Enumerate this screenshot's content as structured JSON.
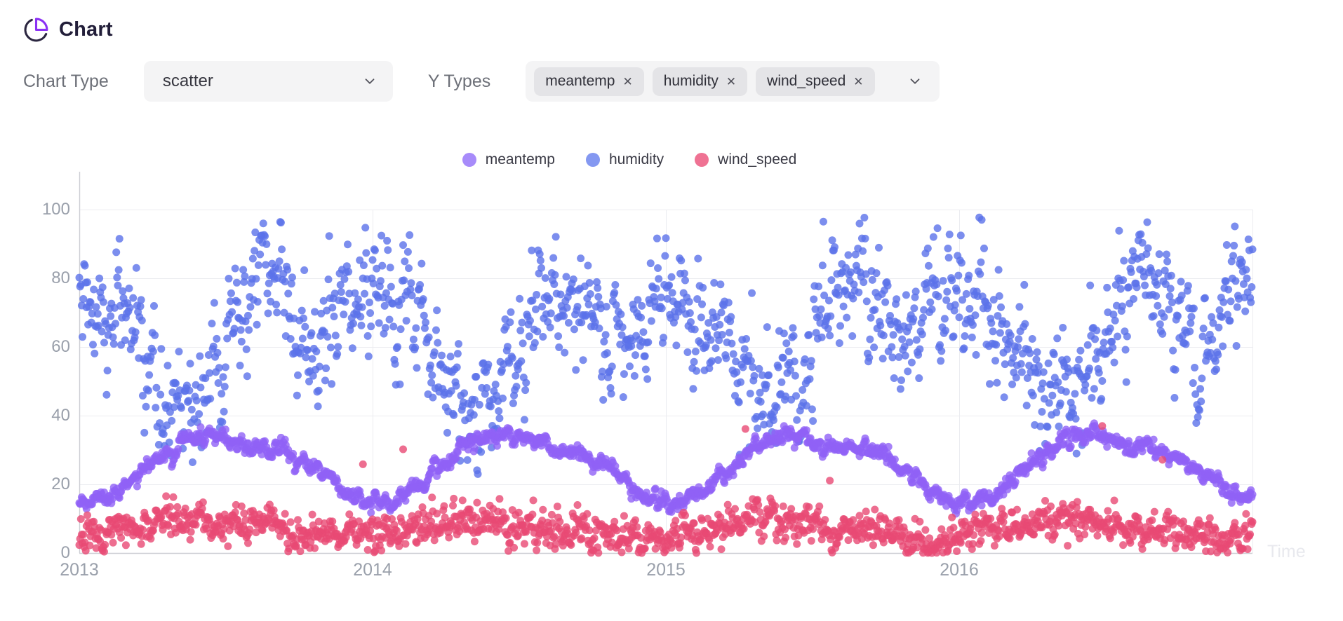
{
  "header": {
    "title": "Chart"
  },
  "controls": {
    "chart_type_label": "Chart Type",
    "chart_type_value": "scatter",
    "y_types_label": "Y Types",
    "y_type_tags": [
      "meantemp",
      "humidity",
      "wind_speed"
    ],
    "remove_glyph": "✕"
  },
  "legend": {
    "items": [
      {
        "label": "meantemp",
        "color": "#a78bfa"
      },
      {
        "label": "humidity",
        "color": "#8498f1"
      },
      {
        "label": "wind_speed",
        "color": "#ef7293"
      }
    ]
  },
  "chart_data": {
    "type": "scatter",
    "title": "",
    "xlabel": "Time",
    "ylabel": "",
    "x_ticks": [
      "2013",
      "2014",
      "2015",
      "2016"
    ],
    "x_range": [
      "2013-01-01",
      "2017-01-01"
    ],
    "sampling": "daily",
    "points_per_series": 1461,
    "y_ticks": [
      0,
      20,
      40,
      60,
      80,
      100
    ],
    "ylim": [
      0,
      100
    ],
    "grid": true,
    "legend_position": "top-center",
    "series": [
      {
        "name": "meantemp",
        "legend_color": "#a78bfa",
        "plot_color": "#9061f6",
        "monthly_means": [
          14.5,
          17.5,
          23.5,
          29.5,
          33.5,
          34.5,
          31.5,
          30.5,
          29.5,
          26.0,
          20.5,
          15.5
        ],
        "scatter_sd": 1.5,
        "observed_min": 11,
        "observed_max": 38.5
      },
      {
        "name": "humidity",
        "legend_color": "#8498f1",
        "plot_color": "#5b72ea",
        "monthly_means": [
          77,
          67,
          56,
          44,
          43,
          52,
          72,
          79,
          74,
          62,
          67,
          77
        ],
        "scatter_sd": 9.5,
        "observed_min": 18,
        "observed_max": 98
      },
      {
        "name": "wind_speed",
        "legend_color": "#ef7293",
        "plot_color": "#e84a74",
        "monthly_means": [
          5.5,
          7.0,
          8.5,
          9.5,
          9.5,
          8.5,
          7.5,
          6.5,
          6.0,
          4.5,
          3.8,
          4.5
        ],
        "scatter_sd": 3.0,
        "observed_min": 0,
        "observed_max": 42
      }
    ]
  },
  "colors": {
    "accent_purple": "#8b31f4",
    "icon_dark": "#2b2640",
    "control_bg": "#f4f4f5",
    "tag_bg": "#e4e4e7",
    "grid_line": "#ebecf0",
    "axis_line": "#cdced4",
    "tick_text": "#9aa0ab",
    "time_label": "#e8e9ee"
  }
}
